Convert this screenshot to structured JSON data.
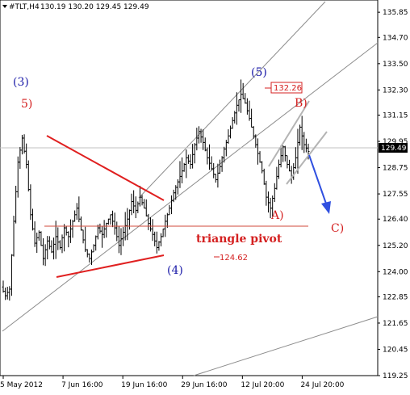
{
  "header": {
    "symbol": "#TLT,H4",
    "ohlc": "130.19 130.20 129.45 129.49"
  },
  "chart_data": {
    "type": "candlestick",
    "symbol": "#TLT",
    "timeframe": "H4",
    "ylim": [
      119.25,
      136.3
    ],
    "y_ticks": [
      "135.85",
      "134.70",
      "133.50",
      "132.30",
      "131.15",
      "129.95",
      "128.75",
      "127.55",
      "126.40",
      "125.20",
      "124.00",
      "122.85",
      "121.65",
      "120.45",
      "119.25"
    ],
    "x_ticks": [
      "5 May 2012",
      "7 Jun 16:00",
      "19 Jun 16:00",
      "29 Jun 16:00",
      "12 Jul 20:00",
      "24 Jul 20:00"
    ],
    "current_price": 129.49,
    "current_price_label": "129.49",
    "price_series": [
      [
        123.3,
        122.9
      ],
      [
        122.9,
        123.2
      ],
      [
        123.2,
        126.3
      ],
      [
        126.3,
        129.0
      ],
      [
        129.0,
        130.1
      ],
      [
        130.1,
        128.9
      ],
      [
        128.9,
        126.6
      ],
      [
        126.6,
        125.3
      ],
      [
        125.3,
        125.8
      ],
      [
        125.8,
        124.6
      ],
      [
        124.6,
        125.4
      ],
      [
        125.4,
        124.9
      ],
      [
        124.9,
        125.6
      ],
      [
        125.6,
        125.1
      ],
      [
        125.1,
        126.0
      ],
      [
        126.0,
        125.6
      ],
      [
        125.6,
        126.3
      ],
      [
        126.3,
        126.9
      ],
      [
        126.9,
        125.9
      ],
      [
        125.9,
        125.0
      ],
      [
        125.0,
        124.6
      ],
      [
        124.6,
        125.2
      ],
      [
        125.2,
        126.0
      ],
      [
        126.0,
        125.7
      ],
      [
        125.7,
        126.2
      ],
      [
        126.2,
        126.6
      ],
      [
        126.6,
        126.0
      ],
      [
        126.0,
        125.2
      ],
      [
        125.2,
        125.8
      ],
      [
        125.8,
        126.4
      ],
      [
        126.4,
        127.2
      ],
      [
        127.2,
        126.8
      ],
      [
        126.8,
        127.4
      ],
      [
        127.4,
        126.9
      ],
      [
        126.9,
        126.2
      ],
      [
        126.2,
        125.7
      ],
      [
        125.7,
        125.1
      ],
      [
        125.1,
        125.6
      ],
      [
        125.6,
        126.3
      ],
      [
        126.3,
        126.9
      ],
      [
        126.9,
        127.6
      ],
      [
        127.6,
        128.1
      ],
      [
        128.1,
        128.6
      ],
      [
        128.6,
        129.2
      ],
      [
        129.2,
        128.9
      ],
      [
        128.9,
        129.8
      ],
      [
        129.8,
        130.4
      ],
      [
        130.4,
        129.9
      ],
      [
        129.9,
        129.2
      ],
      [
        129.2,
        128.7
      ],
      [
        128.7,
        128.2
      ],
      [
        128.2,
        128.8
      ],
      [
        128.8,
        129.6
      ],
      [
        129.6,
        130.2
      ],
      [
        130.2,
        130.9
      ],
      [
        130.9,
        131.6
      ],
      [
        131.6,
        132.1
      ],
      [
        132.1,
        131.7
      ],
      [
        131.7,
        131.0
      ],
      [
        131.0,
        130.2
      ],
      [
        130.2,
        129.4
      ],
      [
        129.4,
        128.6
      ],
      [
        128.6,
        127.4
      ],
      [
        127.4,
        126.9
      ],
      [
        126.9,
        127.8
      ],
      [
        127.8,
        128.9
      ],
      [
        128.9,
        129.7
      ],
      [
        129.7,
        128.9
      ],
      [
        128.9,
        128.3
      ],
      [
        128.3,
        129.2
      ],
      [
        129.2,
        130.6
      ],
      [
        130.6,
        129.8
      ],
      [
        129.8,
        129.49
      ]
    ],
    "annotations": {
      "wave_3": "(3)",
      "wave_5_minor": "5)",
      "wave_5": "(5)",
      "wave_4": "(4)",
      "wave_A": "A)",
      "wave_B": "B)",
      "wave_C": "C)",
      "triangle_pivot": "triangle pivot",
      "level_high": "132.26",
      "level_low": "124.62"
    },
    "colors": {
      "bars": "#000000",
      "channel": "#8c8c8c",
      "triangle": "#e02020",
      "pivot": "#d04a3a",
      "wave_blue": "#1a1aa8",
      "wave_red": "#d42020",
      "forecast_arrow": "#3050e0",
      "abc_channel": "#b4b4b4"
    }
  }
}
